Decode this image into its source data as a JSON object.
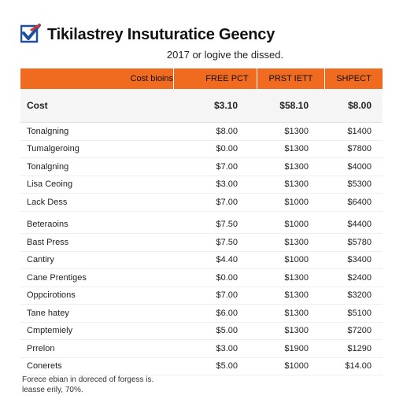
{
  "header": {
    "title": "Tikilastrey Insuturatice Geency",
    "subtitle": "2017 or logive the dissed."
  },
  "table": {
    "columns": [
      "Cost bioins",
      "FREE PCT",
      "PRST IETT",
      "SHPECT"
    ],
    "cost_row": {
      "label": "Cost",
      "values": [
        "$3.10",
        "$58.10",
        "$8.00"
      ]
    },
    "group1": [
      {
        "label": "Tonalgning",
        "values": [
          "$8.00",
          "$1300",
          "$1400"
        ]
      },
      {
        "label": "Tumalgeroing",
        "values": [
          "$0.00",
          "$1300",
          "$7800"
        ]
      },
      {
        "label": "Tonalgning",
        "values": [
          "$7.00",
          "$1300",
          "$4000"
        ]
      },
      {
        "label": "Lisa Ceoing",
        "values": [
          "$3.00",
          "$1300",
          "$5300"
        ]
      },
      {
        "label": "Lack Dess",
        "values": [
          "$7.00",
          "$1000",
          "$6400"
        ]
      }
    ],
    "group2": [
      {
        "label": "Beteraoins",
        "values": [
          "$7.50",
          "$1000",
          "$4400"
        ]
      },
      {
        "label": "Bast Press",
        "values": [
          "$7.50",
          "$1300",
          "$5780"
        ]
      },
      {
        "label": "Cantiry",
        "values": [
          "$4.40",
          "$1000",
          "$3400"
        ]
      },
      {
        "label": "Cane Prentiges",
        "values": [
          "$0.00",
          "$1300",
          "$2400"
        ]
      },
      {
        "label": "Oppcirotions",
        "values": [
          "$7.00",
          "$1300",
          "$3200"
        ]
      },
      {
        "label": "Tane hatey",
        "values": [
          "$6.00",
          "$1300",
          "$5100"
        ]
      },
      {
        "label": "Cmptemiely",
        "values": [
          "$5.00",
          "$1300",
          "$7200"
        ]
      },
      {
        "label": "Prrelon",
        "values": [
          "$3.00",
          "$1900",
          "$1290"
        ]
      },
      {
        "label": "Conerets",
        "values": [
          "$5.00",
          "$1000",
          "$14.00"
        ]
      }
    ]
  },
  "footer": {
    "line1": "Forece ebian in doreced of forgess is.",
    "line2": "leasse erily, 70%."
  },
  "colors": {
    "accent": "#f06a1f",
    "logo_blue": "#1f4e9a",
    "logo_red": "#d9342b"
  }
}
